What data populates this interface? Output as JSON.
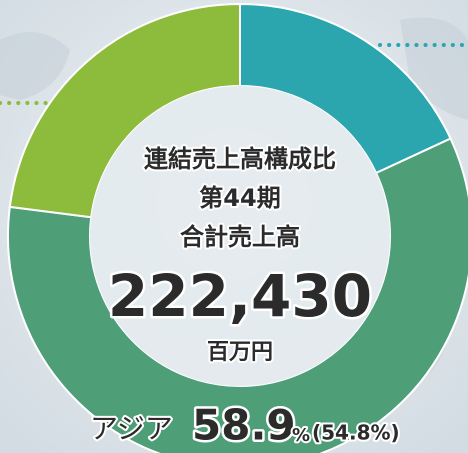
{
  "chart_data": {
    "type": "donut",
    "categories": [
      null,
      "アジア",
      null
    ],
    "values": [
      18.1,
      58.9,
      23.0
    ],
    "colors": [
      "#2ba6ae",
      "#4e9e78",
      "#8dbb3c"
    ],
    "center_text": [
      "連結売上高構成比",
      "第44期",
      "合計売上高",
      "222,430",
      "百万円"
    ],
    "value_labels": [
      null,
      "58.9",
      null
    ],
    "unit": "%",
    "previous_label": "(54.8%)"
  }
}
